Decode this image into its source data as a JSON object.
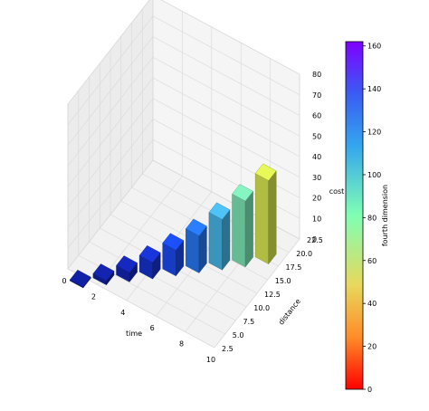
{
  "chart_data": {
    "type": "bar3d",
    "xlabel": "time",
    "ylabel": "distance",
    "zlabel": "cost",
    "xlim": [
      0,
      10
    ],
    "ylim": [
      2.5,
      22.5
    ],
    "zlim": [
      0,
      80
    ],
    "x_ticks": [
      "0",
      "2",
      "4",
      "6",
      "8",
      "10"
    ],
    "y_ticks": [
      "2.5",
      "5.0",
      "7.5",
      "10.0",
      "12.5",
      "15.0",
      "17.5",
      "20.0",
      "22.5"
    ],
    "z_ticks": [
      "0",
      "10",
      "20",
      "30",
      "40",
      "50",
      "60",
      "70",
      "80"
    ],
    "bars": [
      {
        "x": 1,
        "y": 2,
        "z": 0.5,
        "c": 2
      },
      {
        "x": 2,
        "y": 4,
        "z": 2,
        "c": 8
      },
      {
        "x": 3,
        "y": 6,
        "z": 4.5,
        "c": 18
      },
      {
        "x": 4,
        "y": 8,
        "z": 8,
        "c": 32
      },
      {
        "x": 5,
        "y": 10,
        "z": 12.5,
        "c": 50
      },
      {
        "x": 6,
        "y": 12,
        "z": 18,
        "c": 72
      },
      {
        "x": 7,
        "y": 14,
        "z": 24.5,
        "c": 98
      },
      {
        "x": 8,
        "y": 16,
        "z": 32,
        "c": 128
      },
      {
        "x": 9,
        "y": 18,
        "z": 40.5,
        "c": 162
      }
    ],
    "colorbar": {
      "label": "fourth dimension",
      "range": [
        0,
        162
      ],
      "ticks": [
        "0",
        "20",
        "40",
        "60",
        "80",
        "100",
        "120",
        "140",
        "160"
      ],
      "colormap": "rainbow_r"
    },
    "grid": true
  }
}
